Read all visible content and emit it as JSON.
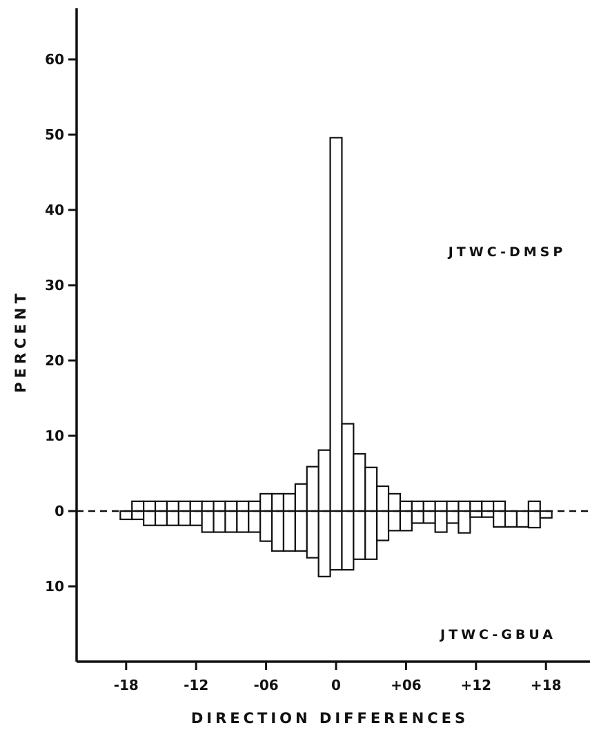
{
  "chart_data": {
    "type": "bar",
    "title": "",
    "xlabel": "DIRECTION DIFFERENCES",
    "ylabel": "PERCENT",
    "x_tick_labels": [
      "-18",
      "-12",
      "-06",
      "0",
      "+06",
      "+12",
      "+18"
    ],
    "x_tick_values": [
      -18,
      -12,
      -6,
      0,
      6,
      12,
      18
    ],
    "xlim": [
      -19.5,
      20.5
    ],
    "y_tick_labels": [
      "60",
      "50",
      "40",
      "30",
      "20",
      "10",
      "0",
      "10"
    ],
    "y_tick_values": [
      60,
      50,
      40,
      30,
      20,
      10,
      0,
      -10
    ],
    "ylim": [
      -20,
      65
    ],
    "grid": false,
    "bin_width": 1,
    "x": [
      -18,
      -17,
      -16,
      -15,
      -14,
      -13,
      -12,
      -11,
      -10,
      -9,
      -8,
      -7,
      -6,
      -5,
      -4,
      -3,
      -2,
      -1,
      0,
      1,
      2,
      3,
      4,
      5,
      6,
      7,
      8,
      9,
      10,
      11,
      12,
      13,
      14,
      15,
      16,
      17,
      18
    ],
    "series": [
      {
        "name": "JTWC-DMSP",
        "direction": "up",
        "values": [
          0,
          1.3,
          1.3,
          1.3,
          1.3,
          1.3,
          1.3,
          1.3,
          1.3,
          1.3,
          1.3,
          1.3,
          2.3,
          2.3,
          2.3,
          3.6,
          5.9,
          8.1,
          49.6,
          11.6,
          7.6,
          5.8,
          3.3,
          2.3,
          1.3,
          1.3,
          1.3,
          1.3,
          1.3,
          1.3,
          1.3,
          1.3,
          1.3,
          0,
          0,
          1.3,
          0
        ]
      },
      {
        "name": "JTWC-GBUA",
        "direction": "down",
        "values": [
          1.1,
          1.1,
          1.9,
          1.9,
          1.9,
          1.9,
          1.9,
          2.8,
          2.8,
          2.8,
          2.8,
          2.8,
          4.0,
          5.3,
          5.3,
          5.3,
          6.2,
          8.7,
          7.8,
          7.8,
          6.4,
          6.4,
          3.9,
          2.6,
          2.6,
          1.6,
          1.6,
          2.8,
          1.6,
          2.9,
          0.8,
          0.8,
          2.1,
          2.1,
          2.1,
          2.2,
          0.9
        ]
      }
    ],
    "annotations": [
      "JTWC-DMSP",
      "JTWC-GBUA"
    ]
  }
}
